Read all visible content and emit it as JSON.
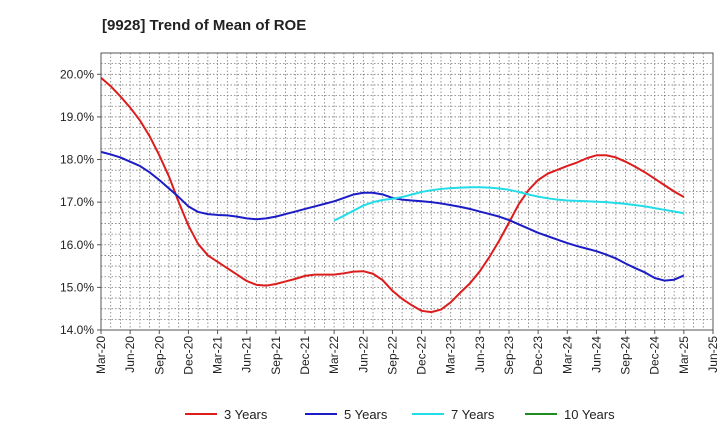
{
  "chart_data": {
    "type": "line",
    "title": "[9928]  Trend of Mean of ROE",
    "xlabel": "",
    "ylabel": "",
    "x_ticks": [
      "Mar-20",
      "Jun-20",
      "Sep-20",
      "Dec-20",
      "Mar-21",
      "Jun-21",
      "Sep-21",
      "Dec-21",
      "Mar-22",
      "Jun-22",
      "Sep-22",
      "Dec-22",
      "Mar-23",
      "Jun-23",
      "Sep-23",
      "Dec-23",
      "Mar-24",
      "Jun-24",
      "Sep-24",
      "Dec-24",
      "Mar-25",
      "Jun-25"
    ],
    "y_ticks": [
      "14.0%",
      "15.0%",
      "16.0%",
      "17.0%",
      "18.0%",
      "19.0%",
      "20.0%"
    ],
    "ylim": [
      14.0,
      20.5
    ],
    "grid": true,
    "legend_position": "bottom",
    "series": [
      {
        "name": "3 Years",
        "color": "#dd1c1c",
        "points": [
          [
            "Mar-20",
            19.92
          ],
          [
            "Apr-20",
            19.72
          ],
          [
            "May-20",
            19.48
          ],
          [
            "Jun-20",
            19.22
          ],
          [
            "Jul-20",
            18.92
          ],
          [
            "Aug-20",
            18.55
          ],
          [
            "Sep-20",
            18.1
          ],
          [
            "Oct-20",
            17.6
          ],
          [
            "Nov-20",
            17.0
          ],
          [
            "Dec-20",
            16.45
          ],
          [
            "Jan-21",
            16.02
          ],
          [
            "Feb-21",
            15.75
          ],
          [
            "Mar-21",
            15.6
          ],
          [
            "Apr-21",
            15.45
          ],
          [
            "May-21",
            15.3
          ],
          [
            "Jun-21",
            15.15
          ],
          [
            "Jul-21",
            15.06
          ],
          [
            "Aug-21",
            15.04
          ],
          [
            "Sep-21",
            15.08
          ],
          [
            "Oct-21",
            15.14
          ],
          [
            "Nov-21",
            15.2
          ],
          [
            "Dec-21",
            15.27
          ],
          [
            "Jan-22",
            15.3
          ],
          [
            "Feb-22",
            15.3
          ],
          [
            "Mar-22",
            15.3
          ],
          [
            "Apr-22",
            15.33
          ],
          [
            "May-22",
            15.37
          ],
          [
            "Jun-22",
            15.38
          ],
          [
            "Jul-22",
            15.32
          ],
          [
            "Aug-22",
            15.17
          ],
          [
            "Sep-22",
            14.92
          ],
          [
            "Oct-22",
            14.73
          ],
          [
            "Nov-22",
            14.58
          ],
          [
            "Dec-22",
            14.45
          ],
          [
            "Jan-23",
            14.42
          ],
          [
            "Feb-23",
            14.48
          ],
          [
            "Mar-23",
            14.65
          ],
          [
            "Apr-23",
            14.88
          ],
          [
            "May-23",
            15.1
          ],
          [
            "Jun-23",
            15.38
          ],
          [
            "Jul-23",
            15.72
          ],
          [
            "Aug-23",
            16.1
          ],
          [
            "Sep-23",
            16.52
          ],
          [
            "Oct-23",
            16.95
          ],
          [
            "Nov-23",
            17.28
          ],
          [
            "Dec-23",
            17.52
          ],
          [
            "Jan-24",
            17.67
          ],
          [
            "Feb-24",
            17.76
          ],
          [
            "Mar-24",
            17.85
          ],
          [
            "Apr-24",
            17.93
          ],
          [
            "May-24",
            18.03
          ],
          [
            "Jun-24",
            18.1
          ],
          [
            "Jul-24",
            18.1
          ],
          [
            "Aug-24",
            18.05
          ],
          [
            "Sep-24",
            17.95
          ],
          [
            "Oct-24",
            17.83
          ],
          [
            "Nov-24",
            17.7
          ],
          [
            "Dec-24",
            17.55
          ],
          [
            "Jan-25",
            17.4
          ],
          [
            "Feb-25",
            17.25
          ],
          [
            "Mar-25",
            17.12
          ]
        ]
      },
      {
        "name": "5 Years",
        "color": "#1c1cc6",
        "points": [
          [
            "Mar-20",
            18.18
          ],
          [
            "Apr-20",
            18.12
          ],
          [
            "May-20",
            18.05
          ],
          [
            "Jun-20",
            17.95
          ],
          [
            "Jul-20",
            17.85
          ],
          [
            "Aug-20",
            17.7
          ],
          [
            "Sep-20",
            17.52
          ],
          [
            "Oct-20",
            17.32
          ],
          [
            "Nov-20",
            17.12
          ],
          [
            "Dec-20",
            16.9
          ],
          [
            "Jan-21",
            16.77
          ],
          [
            "Feb-21",
            16.72
          ],
          [
            "Mar-21",
            16.7
          ],
          [
            "Apr-21",
            16.69
          ],
          [
            "May-21",
            16.66
          ],
          [
            "Jun-21",
            16.62
          ],
          [
            "Jul-21",
            16.6
          ],
          [
            "Aug-21",
            16.62
          ],
          [
            "Sep-21",
            16.66
          ],
          [
            "Oct-21",
            16.72
          ],
          [
            "Nov-21",
            16.78
          ],
          [
            "Dec-21",
            16.84
          ],
          [
            "Jan-22",
            16.9
          ],
          [
            "Feb-22",
            16.96
          ],
          [
            "Mar-22",
            17.02
          ],
          [
            "Apr-22",
            17.1
          ],
          [
            "May-22",
            17.18
          ],
          [
            "Jun-22",
            17.22
          ],
          [
            "Jul-22",
            17.22
          ],
          [
            "Aug-22",
            17.18
          ],
          [
            "Sep-22",
            17.1
          ],
          [
            "Oct-22",
            17.06
          ],
          [
            "Nov-22",
            17.04
          ],
          [
            "Dec-22",
            17.02
          ],
          [
            "Jan-23",
            17.0
          ],
          [
            "Feb-23",
            16.97
          ],
          [
            "Mar-23",
            16.93
          ],
          [
            "Apr-23",
            16.89
          ],
          [
            "May-23",
            16.84
          ],
          [
            "Jun-23",
            16.78
          ],
          [
            "Jul-23",
            16.72
          ],
          [
            "Aug-23",
            16.66
          ],
          [
            "Sep-23",
            16.58
          ],
          [
            "Oct-23",
            16.48
          ],
          [
            "Nov-23",
            16.38
          ],
          [
            "Dec-23",
            16.28
          ],
          [
            "Jan-24",
            16.2
          ],
          [
            "Feb-24",
            16.12
          ],
          [
            "Mar-24",
            16.04
          ],
          [
            "Apr-24",
            15.97
          ],
          [
            "May-24",
            15.91
          ],
          [
            "Jun-24",
            15.85
          ],
          [
            "Jul-24",
            15.77
          ],
          [
            "Aug-24",
            15.68
          ],
          [
            "Sep-24",
            15.56
          ],
          [
            "Oct-24",
            15.45
          ],
          [
            "Nov-24",
            15.35
          ],
          [
            "Dec-24",
            15.22
          ],
          [
            "Jan-25",
            15.16
          ],
          [
            "Feb-25",
            15.18
          ],
          [
            "Mar-25",
            15.28
          ]
        ]
      },
      {
        "name": "7 Years",
        "color": "#22dde8",
        "points": [
          [
            "Mar-22",
            16.57
          ],
          [
            "Apr-22",
            16.68
          ],
          [
            "May-22",
            16.8
          ],
          [
            "Jun-22",
            16.92
          ],
          [
            "Jul-22",
            17.0
          ],
          [
            "Aug-22",
            17.05
          ],
          [
            "Sep-22",
            17.08
          ],
          [
            "Oct-22",
            17.12
          ],
          [
            "Nov-22",
            17.18
          ],
          [
            "Dec-22",
            17.24
          ],
          [
            "Jan-23",
            17.28
          ],
          [
            "Feb-23",
            17.31
          ],
          [
            "Mar-23",
            17.33
          ],
          [
            "Apr-23",
            17.34
          ],
          [
            "May-23",
            17.35
          ],
          [
            "Jun-23",
            17.35
          ],
          [
            "Jul-23",
            17.34
          ],
          [
            "Aug-23",
            17.32
          ],
          [
            "Sep-23",
            17.29
          ],
          [
            "Oct-23",
            17.24
          ],
          [
            "Nov-23",
            17.18
          ],
          [
            "Dec-23",
            17.13
          ],
          [
            "Jan-24",
            17.09
          ],
          [
            "Feb-24",
            17.06
          ],
          [
            "Mar-24",
            17.04
          ],
          [
            "Apr-24",
            17.03
          ],
          [
            "May-24",
            17.02
          ],
          [
            "Jun-24",
            17.01
          ],
          [
            "Jul-24",
            17.0
          ],
          [
            "Aug-24",
            16.98
          ],
          [
            "Sep-24",
            16.96
          ],
          [
            "Oct-24",
            16.93
          ],
          [
            "Nov-24",
            16.9
          ],
          [
            "Dec-24",
            16.86
          ],
          [
            "Jan-25",
            16.82
          ],
          [
            "Feb-25",
            16.78
          ],
          [
            "Mar-25",
            16.74
          ]
        ]
      },
      {
        "name": "10 Years",
        "color": "#1e8c1e",
        "points": []
      }
    ]
  }
}
